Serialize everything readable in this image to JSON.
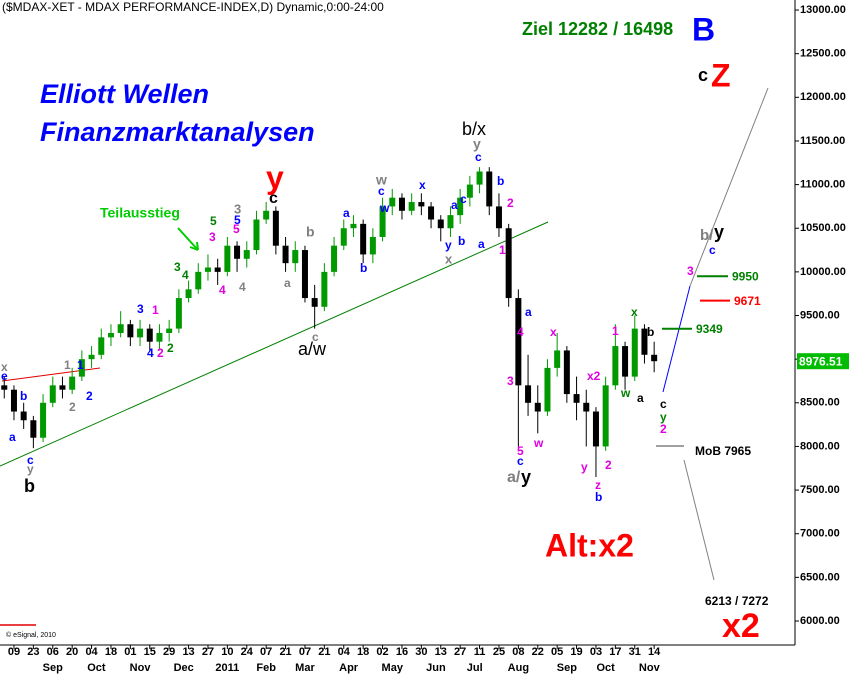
{
  "chart_data": {
    "type": "candlestick",
    "title": "($MDAX-XET - MDAX PERFORMANCE-INDEX,D) Dynamic,0:00-24:00",
    "up_color": "#009900",
    "down_color": "#000000",
    "open": [
      8700,
      8650,
      8400,
      8300,
      8100,
      8500,
      8700,
      8650,
      8800,
      9000,
      9050,
      9250,
      9300,
      9400,
      9250,
      9350,
      9200,
      9300,
      9350,
      9700,
      9800,
      10000,
      10050,
      10000,
      10300,
      10150,
      10250,
      10600,
      10700,
      10300,
      10100,
      10250,
      9700,
      9600,
      10000,
      10300,
      10500,
      10550,
      10200,
      10400,
      10750,
      10850,
      10700,
      10800,
      10750,
      10600,
      10500,
      10650,
      10850,
      11000,
      11150,
      10750,
      10500,
      9700,
      8700,
      8500,
      8400,
      8900,
      9100,
      8600,
      8500,
      8400,
      8000,
      8700,
      9150,
      8800,
      9350,
      9050
    ],
    "high": [
      8800,
      8700,
      8500,
      8350,
      8600,
      8800,
      8800,
      8900,
      9100,
      9150,
      9350,
      9400,
      9550,
      9450,
      9450,
      9400,
      9400,
      9450,
      9800,
      9900,
      10100,
      10200,
      10150,
      10400,
      10350,
      10350,
      10700,
      10800,
      10750,
      10400,
      10350,
      10300,
      9850,
      10100,
      10400,
      10600,
      10650,
      10600,
      10500,
      10850,
      10950,
      10900,
      10900,
      10900,
      10800,
      10650,
      10750,
      10950,
      11100,
      11200,
      11200,
      10900,
      10550,
      9800,
      9050,
      8700,
      9000,
      9300,
      9150,
      8800,
      8650,
      8450,
      8800,
      9400,
      9200,
      9500,
      9400,
      9200
    ],
    "low": [
      8550,
      8300,
      8200,
      7980,
      8050,
      8450,
      8550,
      8600,
      8750,
      8900,
      9000,
      9150,
      9250,
      9150,
      9150,
      9100,
      9100,
      9200,
      9300,
      9650,
      9750,
      9900,
      9850,
      9950,
      10000,
      10050,
      10200,
      10550,
      10200,
      10000,
      10000,
      9650,
      9350,
      9550,
      9950,
      10250,
      10400,
      10100,
      10100,
      10350,
      10650,
      10600,
      10650,
      10650,
      10500,
      10350,
      10400,
      10550,
      10750,
      10900,
      10650,
      10400,
      9600,
      8000,
      8350,
      8150,
      8350,
      8800,
      8500,
      8300,
      8000,
      7650,
      7950,
      8650,
      8650,
      8750,
      8950,
      8850
    ],
    "close": [
      8650,
      8400,
      8300,
      8100,
      8500,
      8700,
      8650,
      8800,
      9000,
      9050,
      9250,
      9300,
      9400,
      9250,
      9350,
      9200,
      9300,
      9350,
      9700,
      9800,
      10000,
      10050,
      10000,
      10300,
      10150,
      10250,
      10600,
      10700,
      10300,
      10100,
      10250,
      9700,
      9600,
      10000,
      10300,
      10500,
      10550,
      10200,
      10400,
      10750,
      10850,
      10700,
      10800,
      10750,
      10600,
      10500,
      10650,
      10850,
      11000,
      11150,
      10750,
      10500,
      9700,
      8700,
      8500,
      8400,
      8900,
      9100,
      8600,
      8500,
      8400,
      8000,
      8700,
      9150,
      8800,
      9350,
      9050,
      8976.51
    ],
    "xlim": [
      -0.44,
      81.52
    ],
    "xticks": [
      {
        "value": 1,
        "label": "09"
      },
      {
        "value": 3,
        "label": "23"
      },
      {
        "value": 5,
        "label": "06"
      },
      {
        "value": 7,
        "label": "20"
      },
      {
        "value": 9,
        "label": "04"
      },
      {
        "value": 11,
        "label": "18"
      },
      {
        "value": 13,
        "label": "01"
      },
      {
        "value": 15,
        "label": "15"
      },
      {
        "value": 17,
        "label": "29"
      },
      {
        "value": 19,
        "label": "13"
      },
      {
        "value": 21,
        "label": "27"
      },
      {
        "value": 23,
        "label": "10"
      },
      {
        "value": 25,
        "label": "24"
      },
      {
        "value": 27,
        "label": "07"
      },
      {
        "value": 29,
        "label": "21"
      },
      {
        "value": 31,
        "label": "07"
      },
      {
        "value": 33,
        "label": "21"
      },
      {
        "value": 35,
        "label": "04"
      },
      {
        "value": 37,
        "label": "18"
      },
      {
        "value": 39,
        "label": "02"
      },
      {
        "value": 41,
        "label": "16"
      },
      {
        "value": 43,
        "label": "30"
      },
      {
        "value": 45,
        "label": "13"
      },
      {
        "value": 47,
        "label": "27"
      },
      {
        "value": 49,
        "label": "11"
      },
      {
        "value": 51,
        "label": "25"
      },
      {
        "value": 53,
        "label": "08"
      },
      {
        "value": 55,
        "label": "22"
      },
      {
        "value": 57,
        "label": "05"
      },
      {
        "value": 59,
        "label": "19"
      },
      {
        "value": 61,
        "label": "03"
      },
      {
        "value": 63,
        "label": "17"
      },
      {
        "value": 65,
        "label": "31"
      },
      {
        "value": 67,
        "label": "14"
      }
    ],
    "month_labels": [
      {
        "value": 5,
        "label": "Sep"
      },
      {
        "value": 9.5,
        "label": "Oct"
      },
      {
        "value": 14,
        "label": "Nov"
      },
      {
        "value": 18.5,
        "label": "Dec"
      },
      {
        "value": 23,
        "label": "2011"
      },
      {
        "value": 27,
        "label": "Feb"
      },
      {
        "value": 31,
        "label": "Mar"
      },
      {
        "value": 35.5,
        "label": "Apr"
      },
      {
        "value": 40,
        "label": "May"
      },
      {
        "value": 44.5,
        "label": "Jun"
      },
      {
        "value": 48.5,
        "label": "Jul"
      },
      {
        "value": 53,
        "label": "Aug"
      },
      {
        "value": 58,
        "label": "Sep"
      },
      {
        "value": 62,
        "label": "Oct"
      },
      {
        "value": 66.5,
        "label": "Nov"
      }
    ],
    "ylim": [
      5725,
      13115
    ],
    "yticks": [
      {
        "value": 6000,
        "label": "6000.00"
      },
      {
        "value": 6500,
        "label": "6500.00"
      },
      {
        "value": 7000,
        "label": "7000.00"
      },
      {
        "value": 7500,
        "label": "7500.00"
      },
      {
        "value": 8000,
        "label": "8000.00"
      },
      {
        "value": 8500,
        "label": "8500.00"
      },
      {
        "value": 9000,
        "label": "9000.00"
      },
      {
        "value": 9500,
        "label": "9500.00"
      },
      {
        "value": 10000,
        "label": "10000.00"
      },
      {
        "value": 10500,
        "label": "10500.00"
      },
      {
        "value": 11000,
        "label": "11000.00"
      },
      {
        "value": 11500,
        "label": "11500.00"
      },
      {
        "value": 12000,
        "label": "12000.00"
      },
      {
        "value": 12500,
        "label": "12500.00"
      },
      {
        "value": 13000,
        "label": "13000.00"
      }
    ],
    "last_price_color": "#00bb00",
    "levels": [
      {
        "value": 9950,
        "color": "#008000"
      },
      {
        "value": 9671,
        "color": "#ff0000"
      },
      {
        "value": 9349,
        "color": "#008000"
      }
    ],
    "annotations": [
      {
        "text": "Elliott Wellen",
        "color": "#0000ff"
      },
      {
        "text": "Finanzmarktanalysen",
        "color": "#0000ff"
      },
      {
        "text": "Ziel 12282 / 16498",
        "color": "#008000"
      },
      {
        "text": "B",
        "color": "#0000ff"
      },
      {
        "text": "c",
        "color": "#000000"
      },
      {
        "text": "Z",
        "color": "#ff0000"
      },
      {
        "text": "Alt:x2",
        "color": "#ff0000"
      },
      {
        "text": "x2",
        "color": "#ff0000"
      },
      {
        "text": "Teilausstieg",
        "color": "#00cc00"
      },
      {
        "text": "y",
        "color": "#ff0000"
      },
      {
        "text": "b/x",
        "color": "#000000"
      },
      {
        "text": "a/w",
        "color": "#000000"
      },
      {
        "text": "b",
        "color": "#000000"
      },
      {
        "text": "a/",
        "color": "#808080"
      },
      {
        "text": "y",
        "color": "#000000"
      },
      {
        "text": "b/",
        "color": "#808080"
      },
      {
        "text": "y",
        "color": "#000000"
      },
      {
        "text": "MoB 7965",
        "color": "#000000"
      },
      {
        "text": "6213 / 7272",
        "color": "#000000"
      },
      {
        "text": "© eSignal, 2010",
        "color": "#000000"
      },
      {
        "text": "x",
        "color": "#808080"
      },
      {
        "text": "e",
        "color": "#0000ff"
      },
      {
        "text": "b",
        "color": "#0000ff"
      },
      {
        "text": "a",
        "color": "#0000ff"
      },
      {
        "text": "c",
        "color": "#0000ff"
      },
      {
        "text": "y",
        "color": "#808080"
      },
      {
        "text": "1",
        "color": "#808080"
      },
      {
        "text": "1",
        "color": "#0000ff"
      },
      {
        "text": "2",
        "color": "#808080"
      },
      {
        "text": "2",
        "color": "#0000ff"
      },
      {
        "text": "3",
        "color": "#0000ff"
      },
      {
        "text": "1",
        "color": "#e000e0"
      },
      {
        "text": "4",
        "color": "#0000ff"
      },
      {
        "text": "2",
        "color": "#e000e0"
      },
      {
        "text": "2",
        "color": "#008000"
      },
      {
        "text": "4",
        "color": "#008000"
      },
      {
        "text": "3",
        "color": "#008000"
      },
      {
        "text": "3",
        "color": "#e000e0"
      },
      {
        "text": "5",
        "color": "#008000"
      },
      {
        "text": "4",
        "color": "#e000e0"
      },
      {
        "text": "3",
        "color": "#808080"
      },
      {
        "text": "5",
        "color": "#0000ff"
      },
      {
        "text": "5",
        "color": "#e000e0"
      },
      {
        "text": "4",
        "color": "#808080"
      },
      {
        "text": "c",
        "color": "#000000"
      },
      {
        "text": "b",
        "color": "#808080"
      },
      {
        "text": "a",
        "color": "#808080"
      },
      {
        "text": "c",
        "color": "#808080"
      },
      {
        "text": "a",
        "color": "#0000ff"
      },
      {
        "text": "b",
        "color": "#0000ff"
      },
      {
        "text": "w",
        "color": "#808080"
      },
      {
        "text": "c",
        "color": "#0000ff"
      },
      {
        "text": "w",
        "color": "#0000ff"
      },
      {
        "text": "x",
        "color": "#0000ff"
      },
      {
        "text": "a",
        "color": "#0000ff"
      },
      {
        "text": "y",
        "color": "#0000ff"
      },
      {
        "text": "b",
        "color": "#0000ff"
      },
      {
        "text": "x",
        "color": "#808080"
      },
      {
        "text": "c",
        "color": "#0000ff"
      },
      {
        "text": "y",
        "color": "#808080"
      },
      {
        "text": "c",
        "color": "#0000ff"
      },
      {
        "text": "a",
        "color": "#0000ff"
      },
      {
        "text": "b",
        "color": "#0000ff"
      },
      {
        "text": "2",
        "color": "#e000e0"
      },
      {
        "text": "1",
        "color": "#e000e0"
      },
      {
        "text": "a",
        "color": "#0000ff"
      },
      {
        "text": "4",
        "color": "#e000e0"
      },
      {
        "text": "3",
        "color": "#e000e0"
      },
      {
        "text": "5",
        "color": "#e000e0"
      },
      {
        "text": "c",
        "color": "#0000ff"
      },
      {
        "text": "w",
        "color": "#e000e0"
      },
      {
        "text": "x",
        "color": "#e000e0"
      },
      {
        "text": "y",
        "color": "#e000e0"
      },
      {
        "text": "x2",
        "color": "#e000e0"
      },
      {
        "text": "z",
        "color": "#e000e0"
      },
      {
        "text": "b",
        "color": "#0000ff"
      },
      {
        "text": "2",
        "color": "#e000e0"
      },
      {
        "text": "1",
        "color": "#e000e0"
      },
      {
        "text": "w",
        "color": "#008000"
      },
      {
        "text": "x",
        "color": "#008000"
      },
      {
        "text": "a",
        "color": "#000000"
      },
      {
        "text": "b",
        "color": "#000000"
      },
      {
        "text": "c",
        "color": "#000000"
      },
      {
        "text": "y",
        "color": "#008000"
      },
      {
        "text": "2",
        "color": "#e000e0"
      },
      {
        "text": "3",
        "color": "#e000e0"
      },
      {
        "text": "c",
        "color": "#0000ff"
      }
    ]
  }
}
